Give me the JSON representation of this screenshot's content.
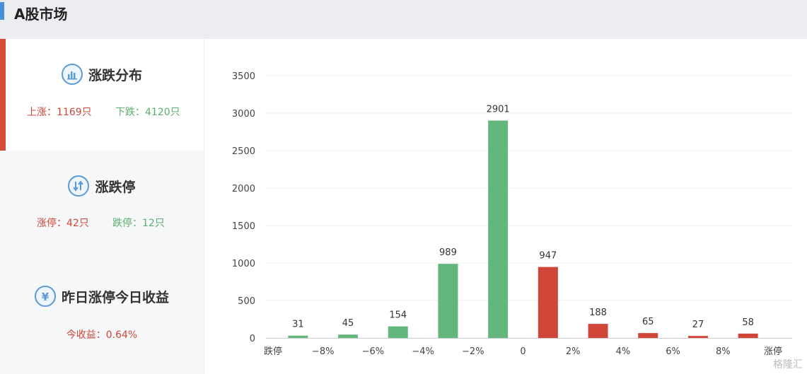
{
  "header": {
    "title": "A股市场"
  },
  "sidebar": {
    "panels": [
      {
        "title": "涨跌分布",
        "icon": "bar-chart-icon",
        "stats": [
          "上涨：1169只",
          "下跌：4120只"
        ]
      },
      {
        "title": "涨跌停",
        "icon": "up-down-arrows-icon",
        "stats": [
          "涨停：42只",
          "跌停：12只"
        ]
      },
      {
        "title": "昨日涨停今日收益",
        "icon": "yen-icon",
        "stats": [
          "今收益：0.64%"
        ]
      }
    ]
  },
  "colors": {
    "up": "#d0473a",
    "down": "#63b77c",
    "accent": "#4a90d9"
  },
  "chart_data": {
    "type": "bar",
    "categories": [
      "跌停",
      "-8%",
      "-6%",
      "-4%",
      "-2%",
      "0",
      "2%",
      "4%",
      "6%",
      "8%",
      "涨停"
    ],
    "x_tick_labels": [
      "跌停",
      "−8%",
      "−6%",
      "−4%",
      "−2%",
      "0",
      "2%",
      "4%",
      "6%",
      "8%",
      "涨停"
    ],
    "bars": [
      {
        "value": 31,
        "color": "down"
      },
      {
        "value": 45,
        "color": "down"
      },
      {
        "value": 154,
        "color": "down"
      },
      {
        "value": 989,
        "color": "down"
      },
      {
        "value": 2901,
        "color": "down"
      },
      {
        "value": 947,
        "color": "up"
      },
      {
        "value": 188,
        "color": "up"
      },
      {
        "value": 65,
        "color": "up"
      },
      {
        "value": 27,
        "color": "up"
      },
      {
        "value": 58,
        "color": "up"
      }
    ],
    "ylim": [
      0,
      3500
    ],
    "yticks": [
      0,
      500,
      1000,
      1500,
      2000,
      2500,
      3000,
      3500
    ],
    "grid": true
  },
  "watermark": "格隆汇"
}
